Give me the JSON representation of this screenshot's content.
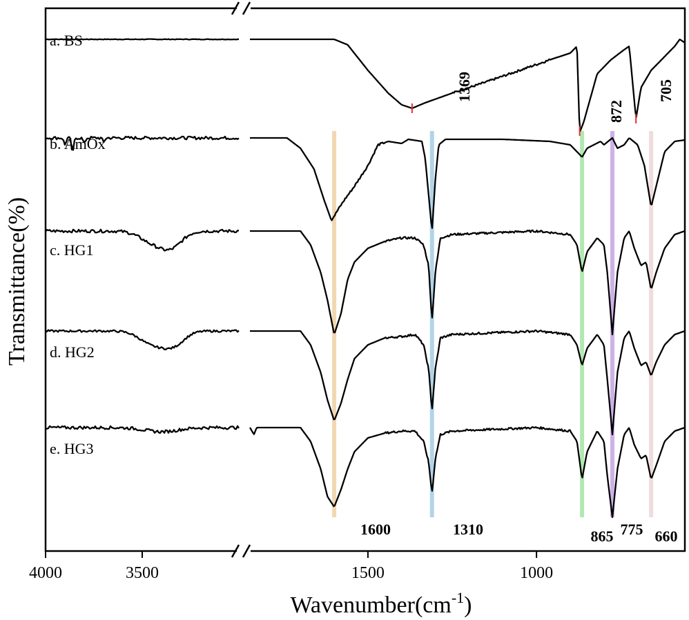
{
  "chart_data": {
    "type": "line",
    "xlabel": "Wavenumber(cm",
    "xlabel_sup": "-1",
    "xlabel_tail": ")",
    "ylabel": "Transmittance(%)",
    "x_axis": {
      "break": true,
      "left_segment": {
        "range": [
          4000,
          3000
        ],
        "ticks": [
          4000,
          3500
        ]
      },
      "right_segment": {
        "range": [
          1850,
          560
        ],
        "ticks": [
          1500,
          1000
        ]
      },
      "tick_labels": [
        "4000",
        "3500",
        "1500",
        "1000"
      ]
    },
    "y_ticks": false,
    "series": [
      {
        "name": "a. BS",
        "left": {
          "noise": 0.3,
          "dips": []
        },
        "right": {
          "points": [
            [
              1850,
              0
            ],
            [
              1600,
              0
            ],
            [
              1560,
              -8
            ],
            [
              1500,
              -45
            ],
            [
              1440,
              -78
            ],
            [
              1400,
              -95
            ],
            [
              1369,
              -100
            ],
            [
              1330,
              -92
            ],
            [
              1250,
              -78
            ],
            [
              1150,
              -62
            ],
            [
              1050,
              -45
            ],
            [
              950,
              -28
            ],
            [
              900,
              -20
            ],
            [
              880,
              -10
            ],
            [
              872,
              -135
            ],
            [
              860,
              -120
            ],
            [
              820,
              -50
            ],
            [
              780,
              -30
            ],
            [
              740,
              -15
            ],
            [
              725,
              -10
            ],
            [
              705,
              -115
            ],
            [
              690,
              -70
            ],
            [
              660,
              -45
            ],
            [
              620,
              -25
            ],
            [
              590,
              -10
            ],
            [
              575,
              0
            ],
            [
              560,
              -5
            ]
          ],
          "noise_from": 1250,
          "noise_to": 960
        }
      },
      {
        "name": "b. AmOx",
        "left": {
          "noise": 1.5,
          "dips": [
            [
              3860,
              22,
              8
            ],
            [
              3900,
              10,
              8
            ],
            [
              3800,
              8,
              8
            ],
            [
              3700,
              6,
              8
            ]
          ]
        },
        "right": {
          "points": [
            [
              1850,
              0
            ],
            [
              1740,
              0
            ],
            [
              1700,
              -15
            ],
            [
              1660,
              -45
            ],
            [
              1630,
              -90
            ],
            [
              1608,
              -120
            ],
            [
              1590,
              -105
            ],
            [
              1570,
              -90
            ],
            [
              1540,
              -70
            ],
            [
              1500,
              -40
            ],
            [
              1470,
              -10
            ],
            [
              1440,
              -5
            ],
            [
              1400,
              -8
            ],
            [
              1380,
              -2
            ],
            [
              1340,
              -5
            ],
            [
              1330,
              -30
            ],
            [
              1310,
              -135
            ],
            [
              1300,
              -60
            ],
            [
              1290,
              -10
            ],
            [
              1270,
              -2
            ],
            [
              1100,
              -2
            ],
            [
              960,
              -5
            ],
            [
              900,
              -10
            ],
            [
              870,
              -25
            ],
            [
              865,
              -28
            ],
            [
              850,
              -15
            ],
            [
              810,
              -5
            ],
            [
              800,
              -10
            ],
            [
              775,
              0
            ],
            [
              760,
              -15
            ],
            [
              740,
              -10
            ],
            [
              725,
              0
            ],
            [
              700,
              -10
            ],
            [
              680,
              -40
            ],
            [
              660,
              -100
            ],
            [
              640,
              -60
            ],
            [
              620,
              -20
            ],
            [
              590,
              -5
            ],
            [
              560,
              -3
            ]
          ],
          "noise_from": 1600,
          "noise_to": 1450
        }
      },
      {
        "name": "c. HG1",
        "left": {
          "noise": 1.5,
          "dips": [
            [
              3450,
              15,
              90
            ],
            [
              3350,
              22,
              80
            ]
          ]
        },
        "right": {
          "points": [
            [
              1850,
              0
            ],
            [
              1700,
              0
            ],
            [
              1670,
              -20
            ],
            [
              1640,
              -60
            ],
            [
              1620,
              -100
            ],
            [
              1600,
              -150
            ],
            [
              1580,
              -120
            ],
            [
              1560,
              -70
            ],
            [
              1540,
              -45
            ],
            [
              1500,
              -25
            ],
            [
              1450,
              -15
            ],
            [
              1400,
              -10
            ],
            [
              1360,
              -10
            ],
            [
              1335,
              -20
            ],
            [
              1320,
              -50
            ],
            [
              1310,
              -130
            ],
            [
              1300,
              -60
            ],
            [
              1285,
              -10
            ],
            [
              1250,
              -5
            ],
            [
              1000,
              0
            ],
            [
              900,
              -5
            ],
            [
              880,
              -20
            ],
            [
              865,
              -60
            ],
            [
              850,
              -30
            ],
            [
              820,
              -10
            ],
            [
              800,
              -20
            ],
            [
              790,
              -60
            ],
            [
              775,
              -150
            ],
            [
              760,
              -60
            ],
            [
              740,
              -10
            ],
            [
              725,
              0
            ],
            [
              710,
              -25
            ],
            [
              690,
              -50
            ],
            [
              675,
              -45
            ],
            [
              660,
              -85
            ],
            [
              645,
              -60
            ],
            [
              620,
              -25
            ],
            [
              590,
              -5
            ],
            [
              560,
              0
            ]
          ],
          "noise_from": 1450,
          "noise_to": 900
        }
      },
      {
        "name": "d. HG2",
        "left": {
          "noise": 1.0,
          "dips": [
            [
              3450,
              18,
              90
            ],
            [
              3340,
              20,
              80
            ]
          ]
        },
        "right": {
          "points": [
            [
              1850,
              0
            ],
            [
              1700,
              0
            ],
            [
              1670,
              -20
            ],
            [
              1640,
              -60
            ],
            [
              1620,
              -100
            ],
            [
              1600,
              -130
            ],
            [
              1580,
              -105
            ],
            [
              1560,
              -70
            ],
            [
              1540,
              -40
            ],
            [
              1500,
              -20
            ],
            [
              1450,
              -10
            ],
            [
              1400,
              -8
            ],
            [
              1360,
              -5
            ],
            [
              1335,
              -20
            ],
            [
              1320,
              -55
            ],
            [
              1310,
              -115
            ],
            [
              1300,
              -55
            ],
            [
              1285,
              -10
            ],
            [
              1250,
              -5
            ],
            [
              1000,
              0
            ],
            [
              900,
              -5
            ],
            [
              880,
              -20
            ],
            [
              865,
              -50
            ],
            [
              850,
              -25
            ],
            [
              820,
              -5
            ],
            [
              800,
              -20
            ],
            [
              790,
              -70
            ],
            [
              775,
              -150
            ],
            [
              760,
              -60
            ],
            [
              740,
              -10
            ],
            [
              725,
              0
            ],
            [
              710,
              -25
            ],
            [
              690,
              -50
            ],
            [
              675,
              -45
            ],
            [
              660,
              -65
            ],
            [
              645,
              -45
            ],
            [
              620,
              -20
            ],
            [
              590,
              -5
            ],
            [
              560,
              0
            ]
          ],
          "noise_from": 1450,
          "noise_to": 900
        }
      },
      {
        "name": "e. HG3",
        "left": {
          "noise": 1.5,
          "dips": [
            [
              3400,
              6,
              120
            ]
          ]
        },
        "right": {
          "points": [
            [
              1850,
              0
            ],
            [
              1838,
              -10
            ],
            [
              1830,
              0
            ],
            [
              1700,
              0
            ],
            [
              1670,
              -20
            ],
            [
              1640,
              -60
            ],
            [
              1620,
              -100
            ],
            [
              1600,
              -115
            ],
            [
              1580,
              -90
            ],
            [
              1560,
              -60
            ],
            [
              1540,
              -35
            ],
            [
              1500,
              -15
            ],
            [
              1450,
              -8
            ],
            [
              1400,
              -5
            ],
            [
              1360,
              -5
            ],
            [
              1335,
              -20
            ],
            [
              1320,
              -50
            ],
            [
              1310,
              -95
            ],
            [
              1300,
              -45
            ],
            [
              1285,
              -10
            ],
            [
              1250,
              -5
            ],
            [
              1000,
              0
            ],
            [
              900,
              -5
            ],
            [
              880,
              -20
            ],
            [
              865,
              -75
            ],
            [
              850,
              -35
            ],
            [
              820,
              -5
            ],
            [
              800,
              -20
            ],
            [
              790,
              -70
            ],
            [
              775,
              -130
            ],
            [
              760,
              -60
            ],
            [
              740,
              -10
            ],
            [
              725,
              0
            ],
            [
              710,
              -25
            ],
            [
              690,
              -45
            ],
            [
              675,
              -40
            ],
            [
              660,
              -75
            ],
            [
              645,
              -55
            ],
            [
              620,
              -20
            ],
            [
              590,
              -5
            ],
            [
              560,
              0
            ]
          ],
          "noise_from": 1450,
          "noise_to": 900
        }
      }
    ],
    "highlight_bands": [
      {
        "x": 1600,
        "color": "#f0d3a8"
      },
      {
        "x": 1310,
        "color": "#a8cfe6"
      },
      {
        "x": 865,
        "color": "#a8e6a8"
      },
      {
        "x": 775,
        "color": "#c8a8e6"
      },
      {
        "x": 660,
        "color": "#eed8d8"
      }
    ],
    "bottom_peak_labels": [
      {
        "x": 1600,
        "text": "1600"
      },
      {
        "x": 1310,
        "text": "1310"
      },
      {
        "x": 865,
        "text": "865"
      },
      {
        "x": 775,
        "text": "775"
      },
      {
        "x": 660,
        "text": "660"
      }
    ],
    "bs_peak_labels": [
      {
        "x": 1369,
        "text": "1369",
        "marker_color": "#e03030"
      },
      {
        "x": 872,
        "text": "872",
        "marker_color": "#e03030"
      },
      {
        "x": 705,
        "text": "705",
        "marker_color": "#e03030"
      }
    ]
  }
}
